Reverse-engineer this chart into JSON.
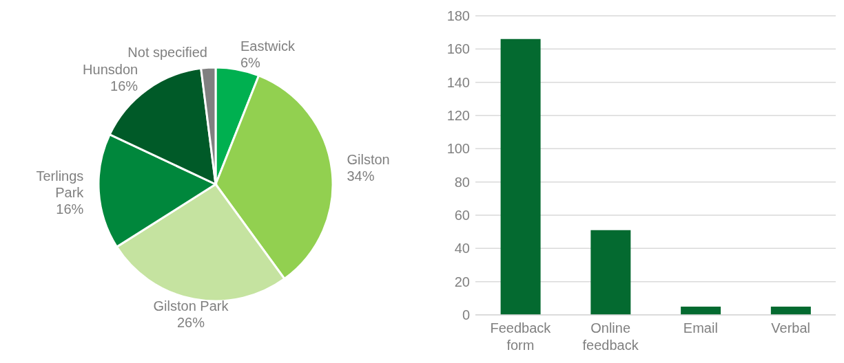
{
  "chart_data": [
    {
      "type": "pie",
      "categories": [
        "Eastwick",
        "Gilston",
        "Gilston Park",
        "Terlings Park",
        "Hunsdon",
        "Not specified"
      ],
      "values": [
        6,
        34,
        26,
        16,
        16,
        2
      ],
      "colors": [
        "#00b050",
        "#92d050",
        "#c5e3a0",
        "#00873c",
        "#005a28",
        "#808080"
      ],
      "value_labels": [
        "6%",
        "34%",
        "26%",
        "16%",
        "16%",
        null
      ],
      "legend": false
    },
    {
      "type": "bar",
      "categories": [
        "Feedback form",
        "Online feedback",
        "Email",
        "Verbal"
      ],
      "values": [
        166,
        51,
        5,
        5
      ],
      "color": "#046a30",
      "ylim": [
        0,
        180
      ],
      "yticks": [
        0,
        20,
        40,
        60,
        80,
        100,
        120,
        140,
        160,
        180
      ],
      "grid": "y",
      "legend": false
    }
  ]
}
